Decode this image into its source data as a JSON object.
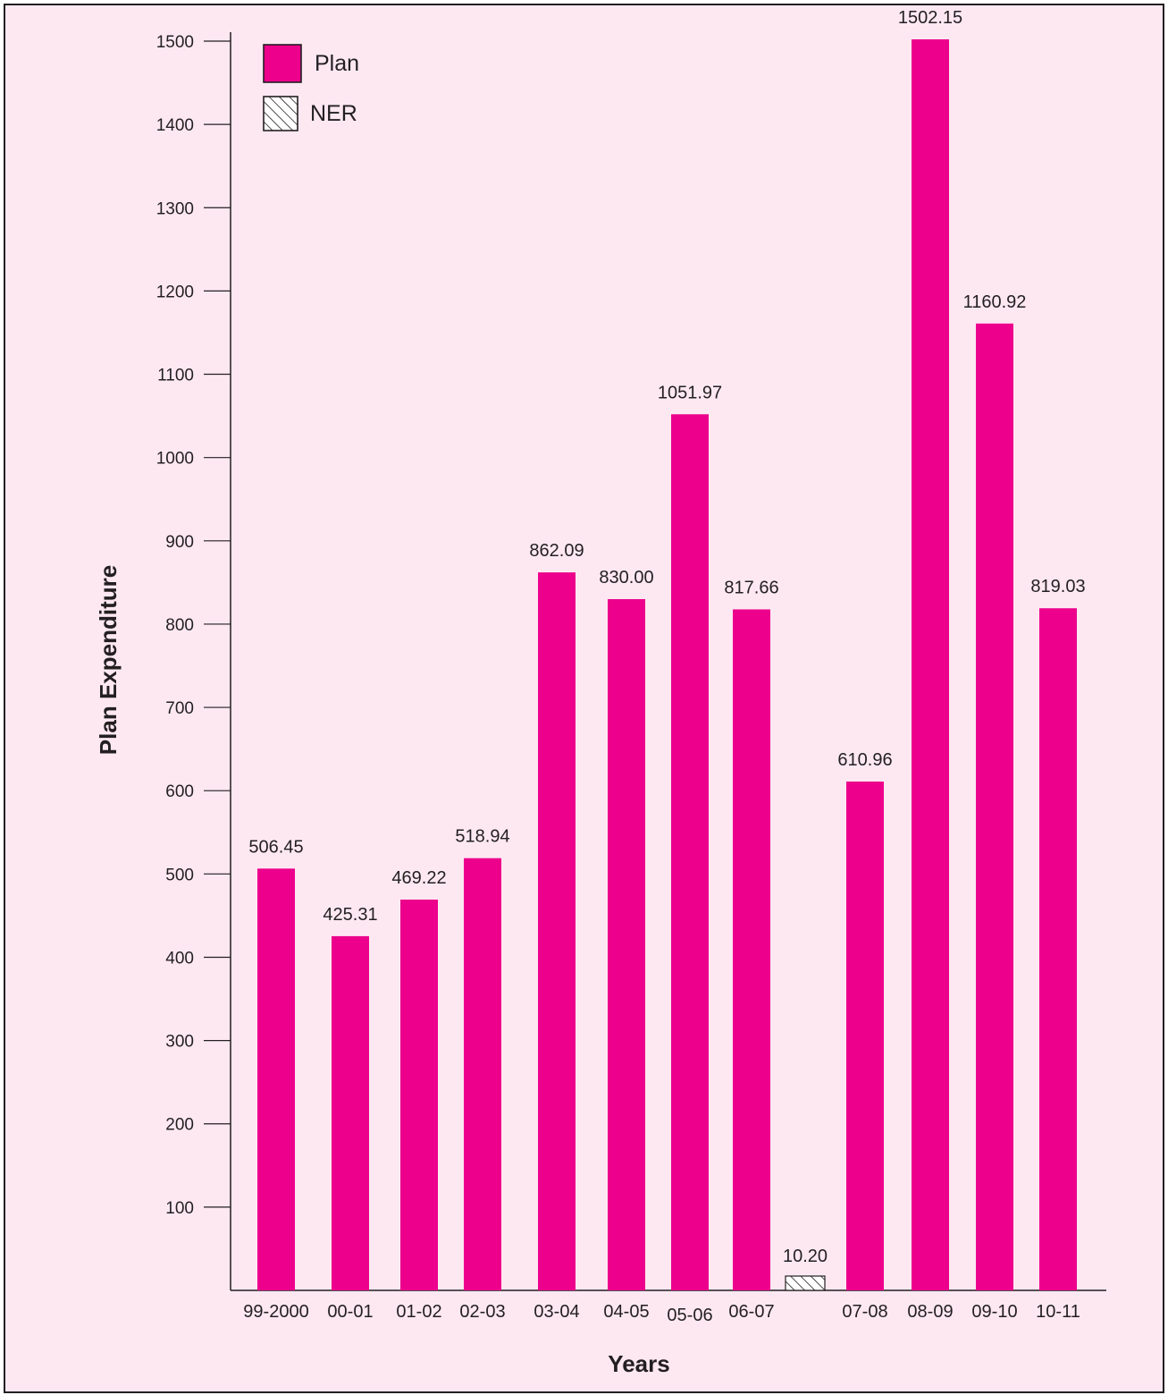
{
  "chart_data": {
    "type": "bar",
    "title": "",
    "xlabel": "Years",
    "ylabel": "Plan Expenditure",
    "ylim": [
      0,
      1550
    ],
    "yticks": [
      100,
      200,
      300,
      400,
      500,
      600,
      700,
      800,
      900,
      1000,
      1100,
      1200,
      1300,
      1400,
      1500
    ],
    "grid": false,
    "legend_position": "top-left",
    "categories": [
      "99-2000",
      "00-01",
      "01-02",
      "02-03",
      "03-04",
      "04-05",
      "05-06",
      "06-07",
      "",
      "07-08",
      "08-09",
      "09-10",
      "10-11"
    ],
    "series": [
      {
        "name": "Plan",
        "color": "#ec008c",
        "pattern": "solid",
        "values": [
          506.45,
          425.31,
          469.22,
          518.94,
          862.09,
          830.0,
          1051.97,
          817.66,
          null,
          610.96,
          1502.15,
          1160.92,
          819.03
        ],
        "labels": [
          "506.45",
          "425.31",
          "469.22",
          "518.94",
          "862.09",
          "830.00",
          "1051.97",
          "817.66",
          "",
          "610.96",
          "1502.15",
          "1160.92",
          "819.03"
        ]
      },
      {
        "name": "NER",
        "color": "#231f20",
        "pattern": "hatched",
        "values": [
          null,
          null,
          null,
          null,
          null,
          null,
          null,
          null,
          10.2,
          null,
          null,
          null,
          null
        ],
        "labels": [
          "",
          "",
          "",
          "",
          "",
          "",
          "",
          "",
          "10.20",
          "",
          "",
          "",
          ""
        ]
      }
    ]
  }
}
